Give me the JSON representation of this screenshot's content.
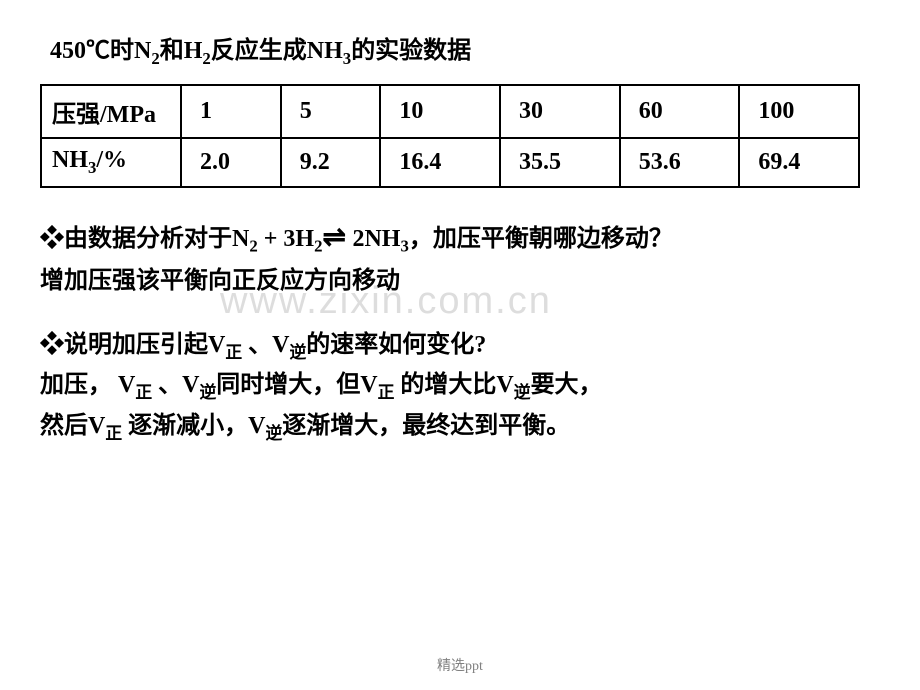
{
  "title": {
    "prefix": "450℃时N",
    "sub1": "2",
    "mid1": "和H",
    "sub2": "2",
    "mid2": "反应生成NH",
    "sub3": "3",
    "suffix": "的实验数据"
  },
  "table": {
    "header_row": {
      "label": "压强/MPa",
      "values": [
        "1",
        "5",
        "10",
        "30",
        "60",
        "100"
      ]
    },
    "data_row": {
      "label_prefix": "NH",
      "label_sub": "3",
      "label_suffix": "/%",
      "values": [
        "2.0",
        "9.2",
        "16.4",
        "35.5",
        "53.6",
        "69.4"
      ]
    }
  },
  "question1": {
    "prefix": "❖由数据分析对于N",
    "sub1": "2",
    "mid1": " + 3H",
    "sub2": "2",
    "mid2": "",
    "mid3": "2NH",
    "sub3": "3",
    "suffix": "，加压平衡朝哪边移动？"
  },
  "answer1": "增加压强该平衡向正反应方向移动",
  "question2": {
    "prefix": "❖说明加压引起V",
    "sub1": "正",
    "mid1": " 、V",
    "sub2": "逆",
    "suffix": "的速率如何变化?"
  },
  "answer2": {
    "line1_prefix": "加压， V",
    "line1_sub1": "正",
    "line1_mid1": " 、V",
    "line1_sub2": "逆",
    "line1_mid2": "同时增大，但V",
    "line1_sub3": "正",
    "line1_mid3": " 的增大比V",
    "line1_sub4": "逆",
    "line1_suffix": "要大，",
    "line2_prefix": "然后V",
    "line2_sub1": "正",
    "line2_mid1": " 逐渐减小，V",
    "line2_sub2": "逆",
    "line2_suffix": "逐渐增大，最终达到平衡。"
  },
  "watermark": "www.zixin.com.cn",
  "footer": "精选ppt"
}
